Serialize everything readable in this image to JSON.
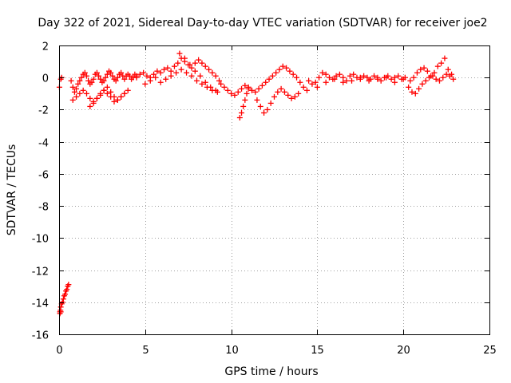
{
  "chart_data": {
    "type": "scatter",
    "title": "Day 322 of 2021, Sidereal Day-to-day VTEC variation (SDTVAR) for receiver joe2",
    "xlabel": "GPS time / hours",
    "ylabel": "SDTVAR / TECUs",
    "xlim": [
      0,
      25
    ],
    "ylim": [
      -16,
      2
    ],
    "xticks": [
      0,
      5,
      10,
      15,
      20,
      25
    ],
    "yticks": [
      2,
      0,
      -2,
      -4,
      -6,
      -8,
      -10,
      -12,
      -14,
      -16
    ],
    "xtick_labels": [
      "0",
      "5",
      "10",
      "15",
      "20",
      "25"
    ],
    "ytick_labels": [
      "2",
      "0",
      "-2",
      "-4",
      "-6",
      "-8",
      "-10",
      "-12",
      "-14",
      "-16"
    ],
    "grid": true,
    "marker": "plus",
    "color": "#ff0000",
    "series": [
      {
        "name": "SDTVAR",
        "x": [
          0.05,
          0.08,
          0.1,
          0.15,
          0.2,
          0.25,
          0.3,
          0.35,
          0.4,
          0.45,
          0.5,
          0.55,
          0.05,
          0.1,
          0.02,
          0.1,
          0.15,
          0.7,
          0.8,
          0.9,
          1.0,
          1.1,
          1.2,
          1.3,
          1.4,
          1.5,
          1.6,
          1.7,
          1.8,
          1.9,
          2.0,
          2.1,
          2.2,
          2.3,
          2.4,
          2.5,
          2.6,
          2.7,
          2.8,
          2.9,
          3.0,
          3.1,
          3.2,
          3.3,
          3.4,
          3.5,
          3.6,
          3.7,
          3.8,
          3.9,
          4.0,
          4.1,
          4.2,
          4.3,
          4.4,
          4.5,
          0.8,
          1.0,
          1.2,
          1.4,
          1.6,
          1.8,
          2.0,
          2.2,
          2.4,
          2.6,
          2.8,
          3.0,
          3.2,
          3.4,
          3.6,
          3.8,
          1.8,
          2.0,
          2.2,
          2.4,
          2.6,
          2.8,
          3.0,
          3.2,
          3.4,
          3.6,
          3.8,
          4.0,
          4.5,
          4.7,
          4.9,
          5.1,
          5.3,
          5.5,
          5.7,
          5.9,
          6.1,
          6.3,
          6.5,
          6.7,
          6.9,
          7.1,
          7.3,
          7.5,
          7.7,
          7.9,
          8.1,
          8.3,
          8.5,
          8.7,
          8.9,
          9.1,
          9.3,
          5.0,
          5.3,
          5.6,
          5.9,
          6.2,
          6.5,
          6.8,
          7.1,
          7.4,
          7.7,
          8.0,
          8.3,
          8.6,
          8.9,
          9.2,
          7.0,
          7.3,
          7.6,
          7.9,
          8.2,
          8.5,
          8.8,
          9.1,
          9.4,
          9.6,
          9.8,
          10.0,
          10.2,
          10.4,
          10.6,
          10.8,
          11.0,
          11.2,
          11.4,
          11.6,
          11.8,
          12.0,
          12.2,
          12.4,
          12.6,
          12.8,
          13.0,
          13.2,
          13.4,
          13.6,
          13.8,
          14.0,
          14.2,
          14.4,
          10.5,
          10.6,
          10.7,
          10.8,
          10.9,
          11.0,
          11.5,
          11.7,
          11.9,
          12.1,
          12.3,
          12.5,
          12.7,
          12.9,
          13.1,
          13.3,
          13.5,
          13.7,
          13.9,
          14.5,
          14.7,
          14.9,
          15.1,
          15.3,
          15.5,
          15.7,
          15.9,
          16.1,
          16.3,
          16.5,
          16.7,
          16.9,
          17.1,
          17.3,
          17.5,
          17.7,
          17.9,
          18.1,
          18.3,
          18.5,
          18.7,
          18.9,
          19.1,
          19.3,
          19.5,
          19.7,
          19.9,
          20.1,
          15.0,
          15.5,
          16.0,
          16.5,
          17.0,
          17.5,
          18.0,
          18.5,
          19.0,
          19.5,
          20.0,
          20.3,
          20.5,
          20.7,
          20.9,
          21.1,
          21.3,
          21.5,
          21.7,
          21.9,
          22.1,
          22.3,
          22.5,
          22.7,
          22.9,
          20.4,
          20.6,
          20.8,
          21.0,
          21.2,
          21.4,
          21.6,
          21.8,
          22.0,
          22.2,
          22.4,
          22.6,
          22.8
        ],
        "y": [
          -14.6,
          -14.5,
          -14.3,
          -14.1,
          -14.0,
          -13.8,
          -13.6,
          -13.5,
          -13.3,
          -13.2,
          -13.0,
          -12.9,
          -14.7,
          -14.6,
          -0.6,
          -0.1,
          0.0,
          -0.2,
          -0.6,
          -0.9,
          -0.7,
          -0.4,
          -0.2,
          0.0,
          0.2,
          0.3,
          0.1,
          -0.2,
          -0.4,
          -0.3,
          -0.1,
          0.2,
          0.3,
          0.1,
          -0.1,
          -0.3,
          -0.2,
          0.0,
          0.2,
          0.4,
          0.3,
          0.1,
          -0.1,
          -0.2,
          0.0,
          0.2,
          0.3,
          0.1,
          -0.1,
          0.1,
          0.2,
          0.1,
          -0.1,
          0.0,
          0.2,
          0.1,
          -1.4,
          -1.2,
          -1.0,
          -0.8,
          -1.0,
          -1.3,
          -1.5,
          -1.3,
          -1.0,
          -0.8,
          -1.0,
          -1.2,
          -1.5,
          -1.4,
          -1.2,
          -1.0,
          -1.8,
          -1.6,
          -1.3,
          -1.1,
          -0.8,
          -0.6,
          -0.9,
          -1.2,
          -1.4,
          -1.2,
          -1.0,
          -0.8,
          0.0,
          0.2,
          0.3,
          0.1,
          0.0,
          0.2,
          0.4,
          0.3,
          0.5,
          0.6,
          0.4,
          0.7,
          0.9,
          1.2,
          1.0,
          0.8,
          0.6,
          0.9,
          1.1,
          0.9,
          0.7,
          0.5,
          0.3,
          0.1,
          -0.2,
          -0.4,
          -0.2,
          0.0,
          -0.3,
          -0.1,
          0.1,
          0.3,
          0.5,
          0.3,
          0.1,
          -0.2,
          -0.4,
          -0.6,
          -0.8,
          -0.9,
          1.5,
          1.2,
          0.8,
          0.4,
          0.1,
          -0.3,
          -0.6,
          -0.8,
          -0.4,
          -0.6,
          -0.8,
          -1.0,
          -1.1,
          -0.9,
          -0.7,
          -0.5,
          -0.6,
          -0.8,
          -0.9,
          -0.7,
          -0.5,
          -0.3,
          -0.1,
          0.1,
          0.3,
          0.5,
          0.7,
          0.6,
          0.4,
          0.2,
          0.0,
          -0.3,
          -0.6,
          -0.8,
          -2.5,
          -2.2,
          -1.8,
          -1.4,
          -1.0,
          -0.7,
          -1.4,
          -1.8,
          -2.2,
          -2.0,
          -1.6,
          -1.2,
          -0.9,
          -0.7,
          -0.9,
          -1.1,
          -1.3,
          -1.2,
          -1.0,
          -0.2,
          -0.4,
          -0.3,
          0.0,
          0.3,
          0.2,
          0.0,
          -0.1,
          0.1,
          0.2,
          0.0,
          -0.2,
          0.1,
          0.2,
          0.0,
          -0.1,
          0.1,
          0.0,
          -0.1,
          0.1,
          0.0,
          -0.2,
          0.0,
          0.1,
          -0.1,
          0.0,
          0.1,
          -0.1,
          0.0,
          -0.6,
          -0.3,
          -0.1,
          -0.3,
          -0.2,
          0.0,
          -0.2,
          -0.1,
          0.0,
          -0.3,
          -0.1,
          -0.6,
          -0.9,
          -1.0,
          -0.7,
          -0.4,
          -0.2,
          0.0,
          0.1,
          -0.1,
          -0.2,
          0.0,
          0.2,
          0.1,
          -0.1,
          -0.2,
          0.0,
          0.3,
          0.5,
          0.6,
          0.4,
          0.1,
          0.3,
          0.7,
          0.9,
          1.2,
          0.5,
          0.2
        ]
      }
    ]
  }
}
